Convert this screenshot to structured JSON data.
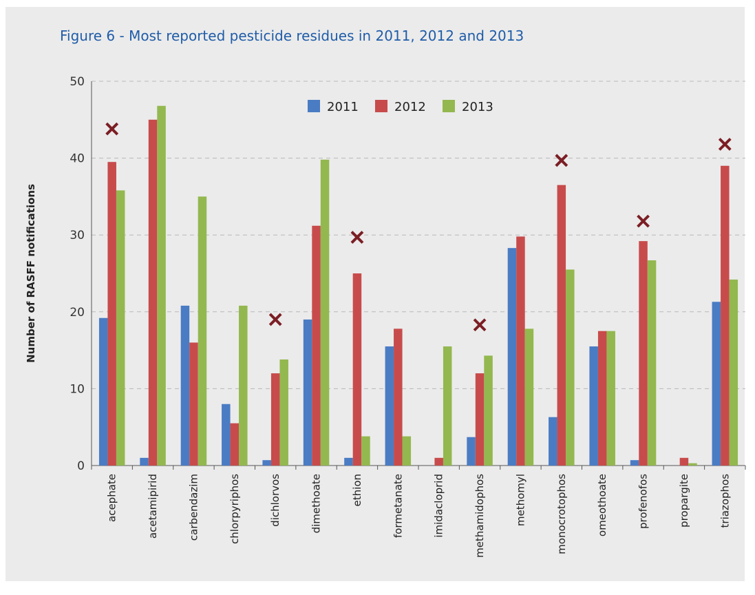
{
  "title": "Figure 6 - Most reported pesticide residues in 2011, 2012 and 2013",
  "chart_data": {
    "type": "bar",
    "title": "Figure 6 - Most reported pesticide residues in 2011, 2012 and 2013",
    "xlabel": "",
    "ylabel": "Number of RASFF notifications",
    "ylim": [
      0,
      50
    ],
    "yticks": [
      0,
      10,
      20,
      30,
      40,
      50
    ],
    "grid": true,
    "legend_position": "top-center",
    "categories": [
      "acephate",
      "acetamipirid",
      "carbendazim",
      "chlorpyriphos",
      "dichlorvos",
      "dimethoate",
      "ethion",
      "formetanate",
      "imidacloprid",
      "methamidophos",
      "methomyl",
      "monocrotophos",
      "omeothoate",
      "profenofos",
      "propargite",
      "triazophos"
    ],
    "series": [
      {
        "name": "2011",
        "color": "#4a7cc4",
        "values": [
          19.2,
          1.0,
          20.8,
          8.0,
          0.7,
          19.0,
          1.0,
          15.5,
          0,
          3.7,
          28.3,
          6.3,
          15.5,
          0.7,
          -1.5,
          21.3
        ]
      },
      {
        "name": "2012",
        "color": "#c84b4b",
        "values": [
          39.5,
          45.0,
          16.0,
          5.5,
          12.0,
          31.2,
          25.0,
          17.8,
          1.0,
          12.0,
          29.8,
          36.5,
          17.5,
          29.2,
          1.0,
          39.0
        ]
      },
      {
        "name": "2013",
        "color": "#93b84f",
        "values": [
          35.8,
          46.8,
          35.0,
          20.8,
          13.8,
          39.8,
          3.8,
          3.8,
          15.5,
          14.3,
          17.8,
          25.5,
          17.5,
          26.7,
          0.3,
          24.2
        ]
      }
    ],
    "markers": {
      "symbol": "x",
      "color": "#7b1e24",
      "points": [
        {
          "category": "acephate",
          "value": 43.8
        },
        {
          "category": "dichlorvos",
          "value": 19.0
        },
        {
          "category": "ethion",
          "value": 29.7
        },
        {
          "category": "methamidophos",
          "value": 18.3
        },
        {
          "category": "monocrotophos",
          "value": 39.7
        },
        {
          "category": "profenofos",
          "value": 31.8
        },
        {
          "category": "triazophos",
          "value": 41.8
        }
      ]
    }
  }
}
